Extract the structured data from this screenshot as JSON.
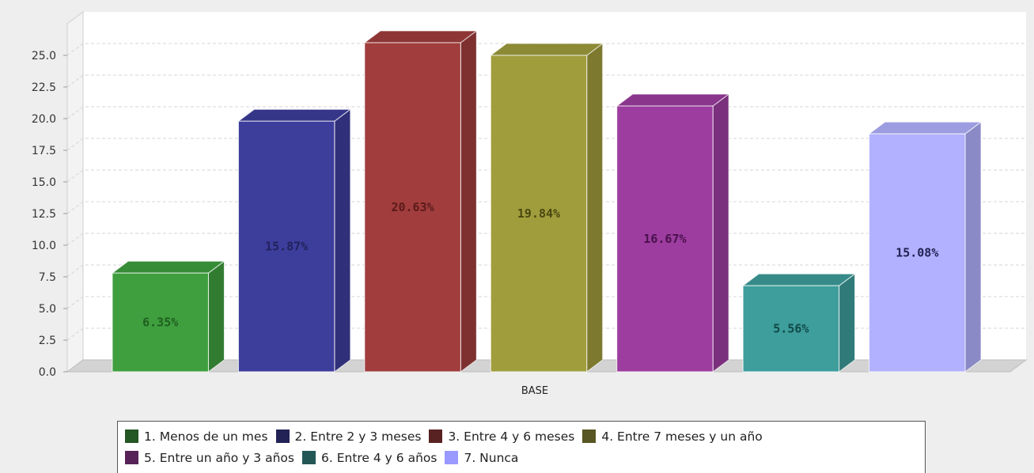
{
  "chart_data": {
    "type": "bar",
    "xlabel": "BASE",
    "ylabel": "",
    "ylim": [
      0,
      27.5
    ],
    "yticks": [
      "0.0",
      "2.5",
      "5.0",
      "7.5",
      "10.0",
      "12.5",
      "15.0",
      "17.5",
      "20.0",
      "22.5",
      "25.0"
    ],
    "grid": true,
    "legend_position": "bottom",
    "categories": [
      "BASE"
    ],
    "series": [
      {
        "name": "1. Menos de un mes",
        "value": 7.8,
        "label": "6.35%",
        "color": "#3f9f3f",
        "label_color": "#1f5f1f"
      },
      {
        "name": "2. Entre 2 y 3 meses",
        "value": 19.8,
        "label": "15.87%",
        "color": "#3d3d9c",
        "label_color": "#22225c"
      },
      {
        "name": "3. Entre 4 y 6 meses",
        "value": 26.0,
        "label": "20.63%",
        "color": "#a13d3d",
        "label_color": "#5c1a1a"
      },
      {
        "name": "4. Entre 7 meses y un año",
        "value": 25.0,
        "label": "19.84%",
        "color": "#a09d3d",
        "label_color": "#4a4810"
      },
      {
        "name": "5. Entre un año y 3 años",
        "value": 21.0,
        "label": "16.67%",
        "color": "#9c3d9f",
        "label_color": "#4a104c"
      },
      {
        "name": "6. Entre 4 y 6 años",
        "value": 6.8,
        "label": "5.56%",
        "color": "#3d9e9c",
        "label_color": "#104a48"
      },
      {
        "name": "7. Nunca",
        "value": 18.8,
        "label": "15.08%",
        "color": "#b1b1ff",
        "label_color": "#222255"
      }
    ]
  }
}
